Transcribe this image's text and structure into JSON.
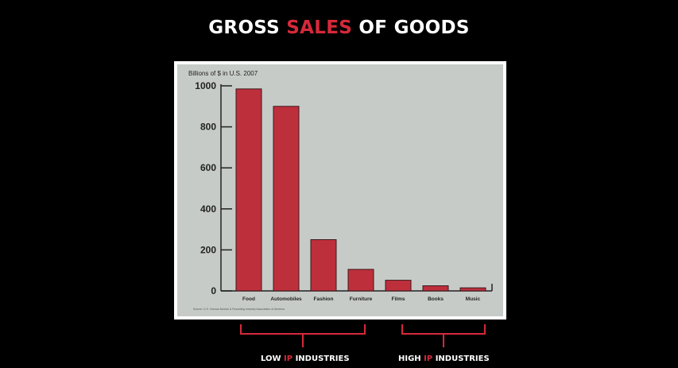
{
  "title": {
    "prefix": "GROSS ",
    "accent": "SALES",
    "suffix": " OF GOODS"
  },
  "colors": {
    "accent": "#d6293a",
    "bar": "#be2f3c",
    "panel": "#c7cbc8",
    "background": "#000000"
  },
  "chart_data": {
    "type": "bar",
    "title": "GROSS SALES OF GOODS",
    "ylabel": "Billions of $ in U.S. 2007",
    "xlabel": "",
    "categories": [
      "Food",
      "Automobiles",
      "Fashion",
      "Furniture",
      "Films",
      "Books",
      "Music"
    ],
    "values": [
      985,
      900,
      250,
      105,
      52,
      25,
      15
    ],
    "ylim": [
      0,
      1000
    ],
    "yticks": [
      0,
      200,
      400,
      600,
      800,
      1000
    ],
    "grid": false,
    "source": "Source: U.S. Census Bureau & Recording Industry Association of America"
  },
  "groups": [
    {
      "pre": "LOW ",
      "ip": "IP",
      "post": " INDUSTRIES"
    },
    {
      "pre": "HIGH ",
      "ip": "IP",
      "post": " INDUSTRIES"
    }
  ]
}
